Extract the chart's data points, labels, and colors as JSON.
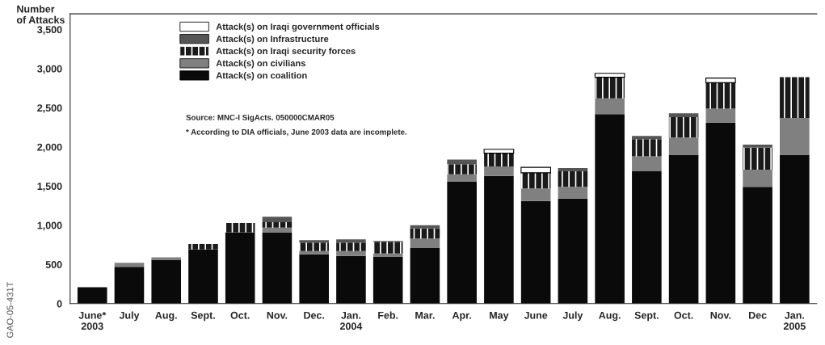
{
  "chart_data": {
    "type": "bar",
    "stacked": true,
    "ylabel": "Number\nof Attacks",
    "categories": [
      "June*\n2003",
      "July",
      "Aug.",
      "Sept.",
      "Oct.",
      "Nov.",
      "Dec.",
      "Jan.\n2004",
      "Feb.",
      "Mar.",
      "Apr.",
      "May",
      "June",
      "July",
      "Aug.",
      "Sept.",
      "Oct.",
      "Nov.",
      "Dec",
      "Jan.\n2005"
    ],
    "series": [
      {
        "name": "Attack(s) on coalition",
        "color": "#0a0a0a",
        "values": [
          210,
          470,
          560,
          690,
          910,
          910,
          630,
          610,
          600,
          710,
          1560,
          1630,
          1310,
          1340,
          2420,
          1690,
          1900,
          2310,
          1490,
          1900
        ]
      },
      {
        "name": "Attack(s) on civilians",
        "color": "#808080",
        "values": [
          null,
          50,
          30,
          null,
          null,
          60,
          40,
          60,
          40,
          120,
          90,
          120,
          160,
          150,
          200,
          190,
          220,
          180,
          220,
          470
        ]
      },
      {
        "name": "Attack(s) on Iraqi security forces",
        "color": "#1a1a1a",
        "values": [
          null,
          null,
          null,
          70,
          120,
          70,
          110,
          110,
          150,
          130,
          130,
          170,
          200,
          200,
          270,
          220,
          260,
          330,
          280,
          520
        ]
      },
      {
        "name": "Attack(s) on Infrastructure",
        "color": "#555555",
        "values": [
          null,
          null,
          null,
          null,
          null,
          70,
          30,
          40,
          10,
          40,
          60,
          null,
          null,
          40,
          null,
          40,
          50,
          null,
          40,
          null
        ]
      },
      {
        "name": "Attack(s) on Iraqi government officials",
        "color": "#ffffff",
        "values": [
          null,
          null,
          null,
          null,
          null,
          null,
          null,
          null,
          null,
          null,
          null,
          50,
          70,
          null,
          50,
          null,
          null,
          60,
          null,
          null
        ]
      }
    ],
    "ylim": [
      0,
      3700
    ],
    "yticks": [
      {
        "value": 0,
        "label": "0"
      },
      {
        "value": 500,
        "label": "500"
      },
      {
        "value": 1000,
        "label": "1,000"
      },
      {
        "value": 1500,
        "label": "1,500"
      },
      {
        "value": 2000,
        "label": "2,000"
      },
      {
        "value": 2500,
        "label": "2,500"
      },
      {
        "value": 3000,
        "label": "3,000"
      },
      {
        "value": 3500,
        "label": "3,500"
      }
    ],
    "grid": false,
    "legend": "top left",
    "annotations": [
      "Source: MNC-I SigActs. 050000CMAR05",
      "* According to DIA officials, June 2003 data are incomplete.",
      "GAO-05-431T"
    ]
  }
}
